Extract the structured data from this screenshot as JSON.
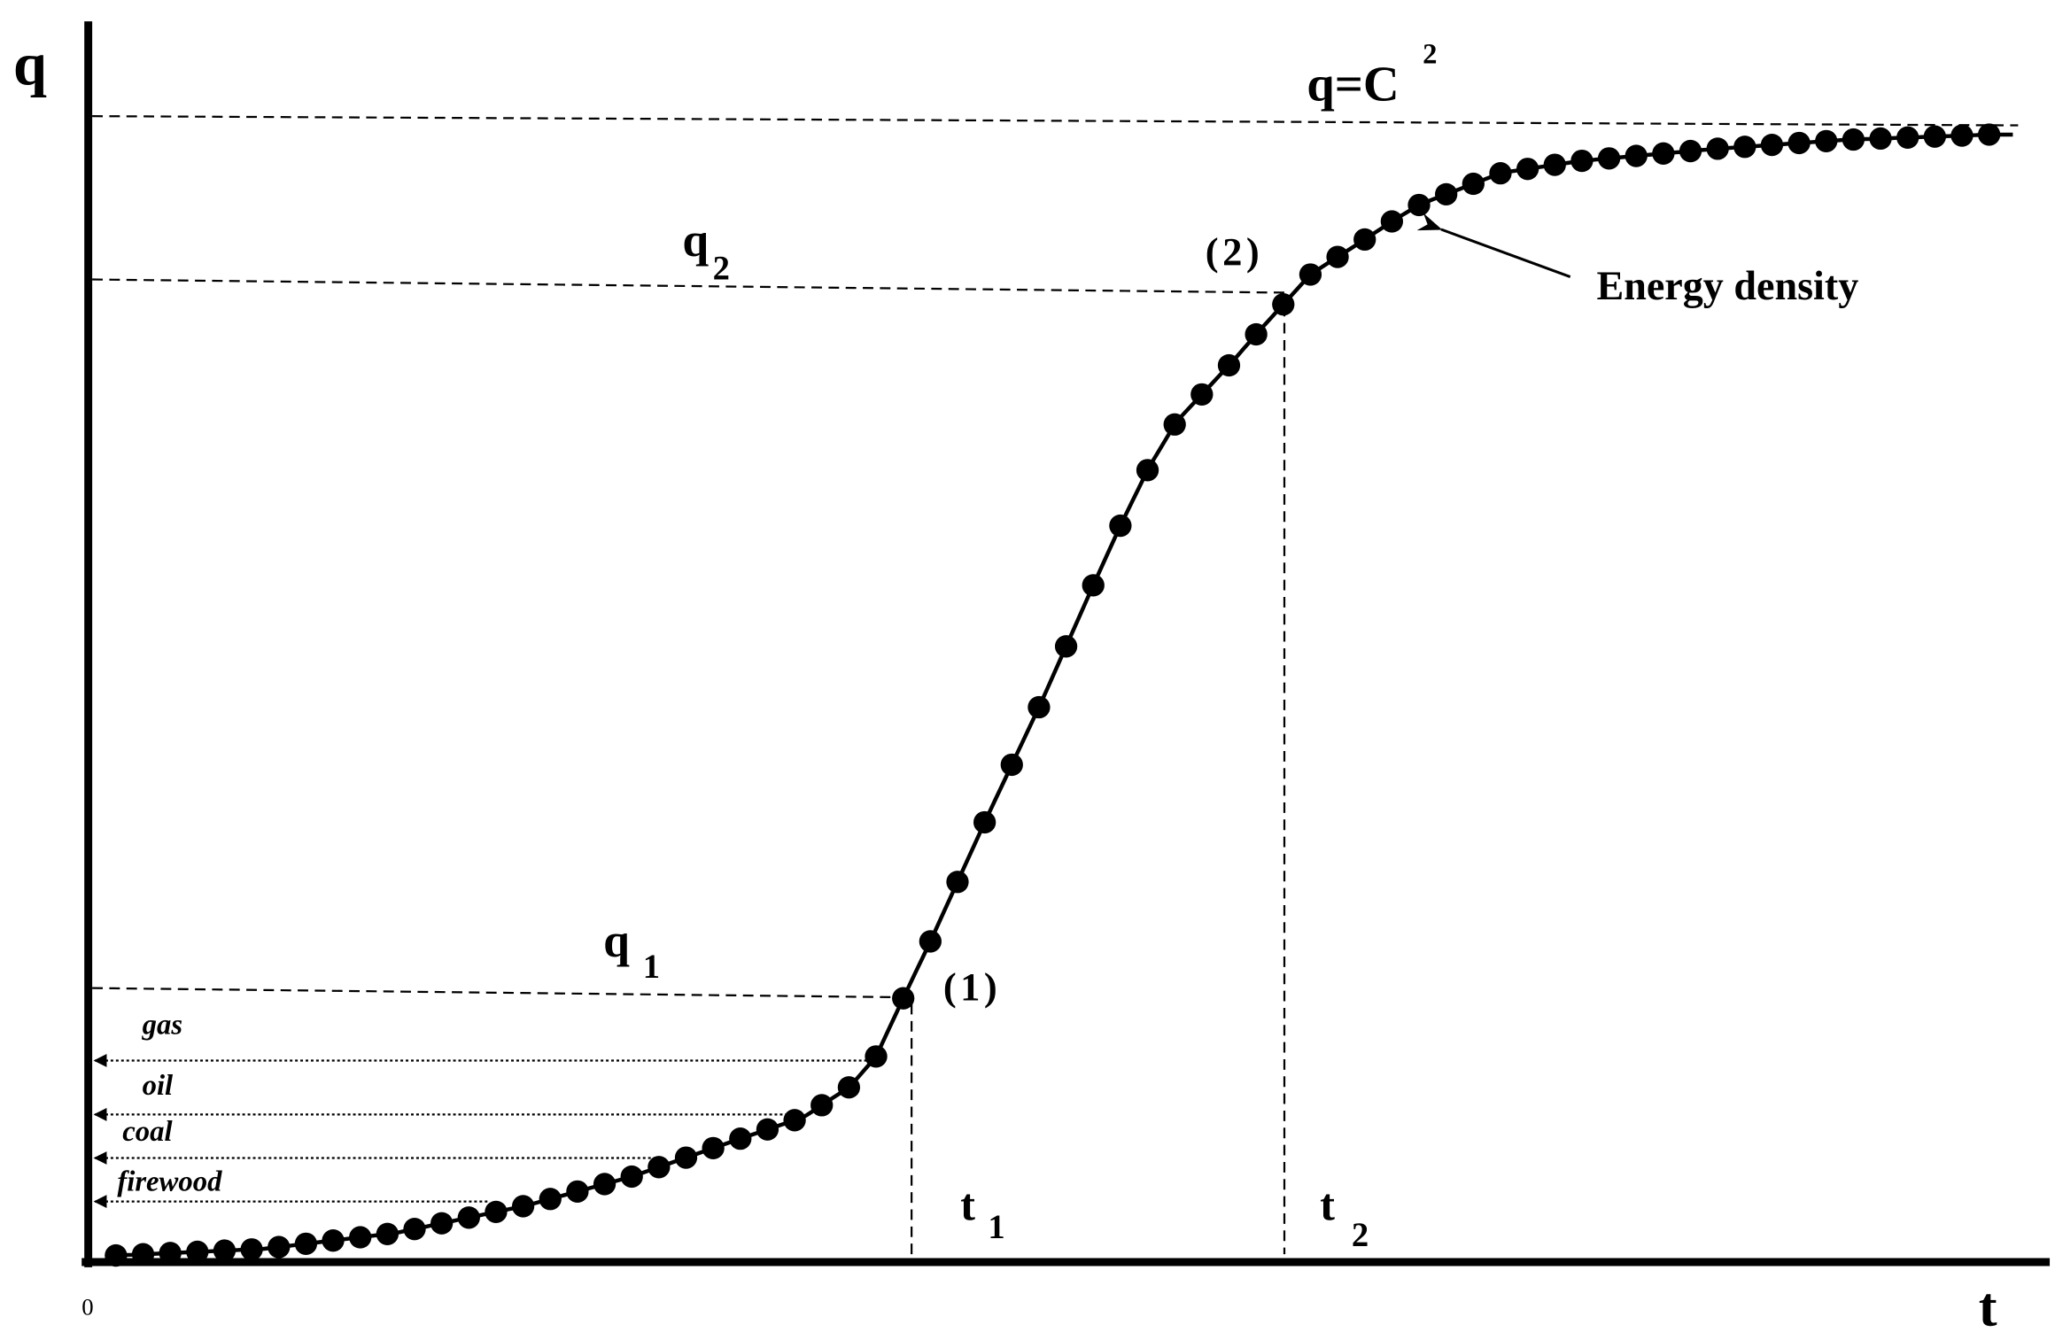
{
  "axes": {
    "y_label": "q",
    "x_label": "t",
    "origin": "0"
  },
  "limit": {
    "label": "q=C",
    "superscript": "2"
  },
  "levels": [
    {
      "label": "q",
      "subscript": "1"
    },
    {
      "label": "q",
      "subscript": "2"
    }
  ],
  "points": [
    "(1)",
    "(2)"
  ],
  "times": [
    {
      "label": "t",
      "subscript": "1"
    },
    {
      "label": "t",
      "subscript": "2"
    }
  ],
  "annotation": "Energy density",
  "sources": [
    "gas",
    "oil",
    "coal",
    "firewood"
  ]
}
